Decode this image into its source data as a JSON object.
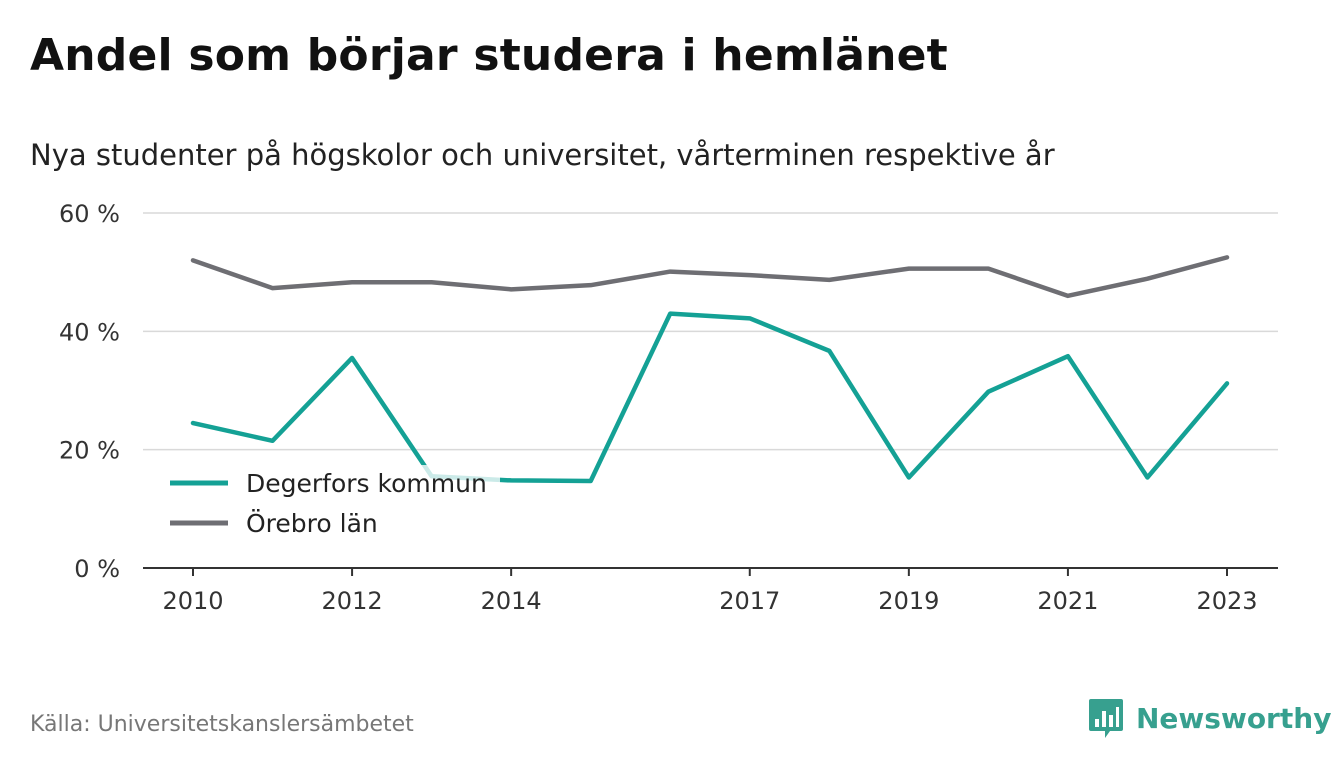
{
  "title": "Andel som börjar studera i hemlänet",
  "subtitle": "Nya studenter på högskolor och universitet, vårterminen respektive år",
  "source": "Källa: Universitetskanslersämbetet",
  "brand": {
    "name": "Newsworthy",
    "icon": "newsworthy-logo-icon",
    "color": "#37a08f"
  },
  "chart_data": {
    "type": "line",
    "x": [
      2010,
      2011,
      2012,
      2013,
      2014,
      2015,
      2016,
      2017,
      2018,
      2019,
      2020,
      2021,
      2022,
      2023
    ],
    "x_tick_labels": [
      "2010",
      "2012",
      "2014",
      "2017",
      "2019",
      "2021",
      "2023"
    ],
    "y_tick_labels": [
      "0 %",
      "20 %",
      "40 %",
      "60 %"
    ],
    "ylim": [
      0,
      60
    ],
    "grid": true,
    "legend_position": "bottom-left",
    "series": [
      {
        "name": "Degerfors kommun",
        "color": "#14a195",
        "values": [
          24.5,
          21.5,
          35.5,
          15.5,
          14.8,
          14.7,
          43.0,
          42.2,
          36.7,
          15.3,
          29.8,
          35.8,
          15.3,
          31.2
        ]
      },
      {
        "name": "Örebro län",
        "color": "#6e6e73",
        "values": [
          52.0,
          47.3,
          48.3,
          48.3,
          47.1,
          47.8,
          50.1,
          49.5,
          48.7,
          50.6,
          50.6,
          46.0,
          48.9,
          52.5
        ]
      }
    ]
  }
}
